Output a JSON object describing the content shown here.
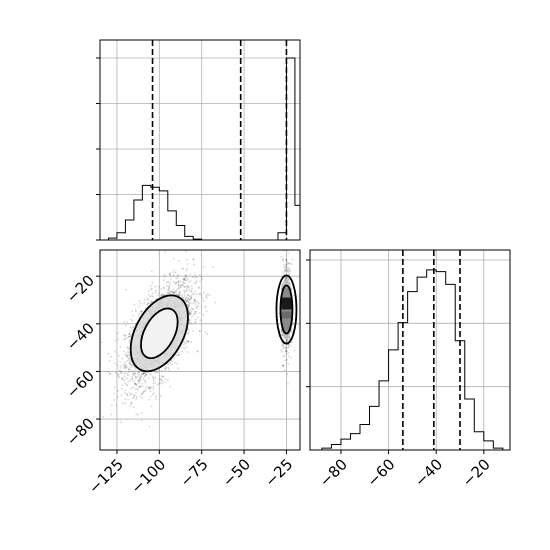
{
  "chart_data": [
    {
      "panel": "top-left",
      "type": "histogram",
      "x_range": [
        -135,
        -17
      ],
      "grid": true,
      "x_ticks": [
        -125,
        -100,
        -75,
        -50,
        -25
      ],
      "bin_edges": [
        -135,
        -130,
        -125,
        -120,
        -115,
        -110,
        -105,
        -100,
        -95,
        -90,
        -85,
        -80,
        -75,
        -70,
        -65,
        -60,
        -55,
        -50,
        -45,
        -40,
        -35,
        -30,
        -25,
        -20,
        -17
      ],
      "counts_relative": [
        0,
        0.01,
        0.04,
        0.11,
        0.22,
        0.3,
        0.29,
        0.27,
        0.16,
        0.08,
        0.02,
        0.005,
        0,
        0,
        0,
        0,
        0,
        0,
        0,
        0,
        0,
        0.04,
        1.0,
        0.19
      ],
      "quantile_lines": [
        -104,
        -52,
        -25
      ]
    },
    {
      "panel": "bottom-left",
      "type": "2d-density",
      "x_range": [
        -135,
        -17
      ],
      "y_range": [
        -93,
        -9
      ],
      "x_ticks": [
        -125,
        -100,
        -75,
        -50,
        -25
      ],
      "y_ticks": [
        -20,
        -40,
        -60,
        -80
      ],
      "grid": true,
      "blobs": [
        {
          "center": [
            -100,
            -44
          ],
          "std": [
            10,
            11
          ],
          "correlation": 0.6,
          "contour_rx": [
            17,
            12
          ],
          "contour_ry": [
            33,
            21
          ]
        },
        {
          "center": [
            -25,
            -34
          ],
          "std": [
            1.5,
            10
          ],
          "correlation": 0,
          "contour_rx": [
            4,
            2.5
          ],
          "contour_ry": [
            18,
            11
          ]
        }
      ]
    },
    {
      "panel": "bottom-right",
      "type": "histogram",
      "x_range": [
        -93,
        -9
      ],
      "grid": true,
      "x_ticks": [
        -80,
        -60,
        -40,
        -20
      ],
      "bin_edges": [
        -93,
        -88,
        -84,
        -80,
        -76,
        -72,
        -68,
        -64,
        -60,
        -56,
        -52,
        -48,
        -44,
        -40,
        -36,
        -32,
        -28,
        -24,
        -20,
        -16,
        -12,
        -9
      ],
      "counts_relative": [
        0,
        0.01,
        0.03,
        0.06,
        0.09,
        0.14,
        0.24,
        0.38,
        0.55,
        0.7,
        0.87,
        0.95,
        0.99,
        0.98,
        0.91,
        0.6,
        0.28,
        0.1,
        0.05,
        0.01,
        0
      ],
      "quantile_lines": [
        -54,
        -41,
        -30
      ]
    }
  ]
}
